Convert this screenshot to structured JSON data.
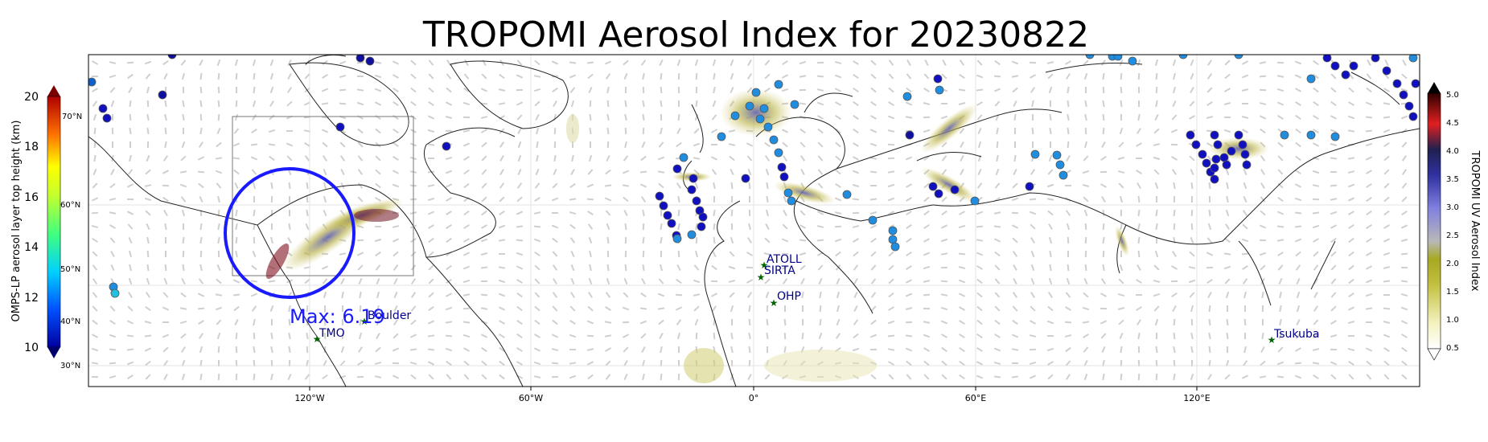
{
  "title": "TROPOMI Aerosol Index for 20230822",
  "left_colorbar": {
    "label": "OMPS-LP aerosol layer top height (km)",
    "ticks": [
      "20",
      "18",
      "16",
      "14",
      "12",
      "10"
    ],
    "lat_labels": [
      "70°N",
      "60°N",
      "50°N",
      "40°N",
      "30°N"
    ]
  },
  "right_colorbar": {
    "label": "TROPOMI UV Aerosol Index",
    "ticks": [
      "5.0",
      "4.5",
      "4.0",
      "3.5",
      "3.0",
      "2.5",
      "2.0",
      "1.5",
      "1.0",
      "0.5"
    ]
  },
  "lon_labels": [
    "120°W",
    "60°W",
    "0°",
    "60°E",
    "120°E"
  ],
  "annotation": {
    "max_text": "Max: 6.19",
    "color": "#1a1aff"
  },
  "stations": [
    "TMO",
    "Boulder",
    "ATOLL",
    "SIRTA",
    "OHP",
    "Tsukuba"
  ],
  "colors": {
    "station_marker": "#006400",
    "station_label": "#00008b",
    "circle": "#1a1aff"
  }
}
